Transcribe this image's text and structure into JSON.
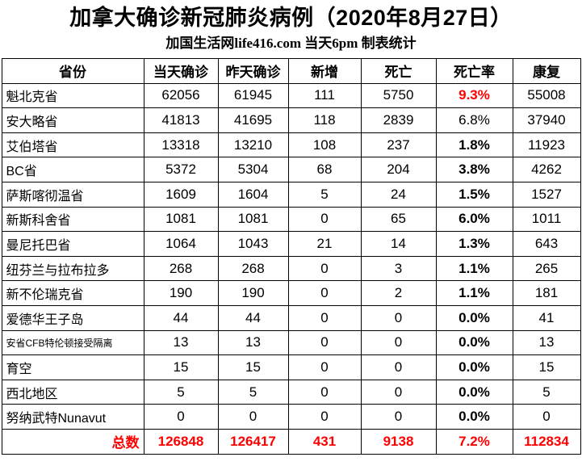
{
  "title": "加拿大确诊新冠肺炎病例（2020年8月27日）",
  "subtitle": "加国生活网life416.com 当天6pm 制表统计",
  "colors": {
    "highlight_red": "#FF0000",
    "text": "#000000",
    "border": "#000000",
    "background": "#FFFFFF"
  },
  "table": {
    "columns": [
      "省份",
      "当天确诊",
      "昨天确诊",
      "新增",
      "死亡",
      "死亡率",
      "康复"
    ],
    "rows": [
      {
        "province": "魁北克省",
        "today": "62056",
        "yesterday": "61945",
        "new_cases": "111",
        "deaths": "5750",
        "death_rate": "9.3%",
        "recovered": "55008",
        "death_rate_bold": true,
        "death_rate_red": true,
        "small_font": false
      },
      {
        "province": "安大略省",
        "today": "41813",
        "yesterday": "41695",
        "new_cases": "118",
        "deaths": "2839",
        "death_rate": "6.8%",
        "recovered": "37940",
        "death_rate_bold": false,
        "death_rate_red": false,
        "small_font": false
      },
      {
        "province": "艾伯塔省",
        "today": "13318",
        "yesterday": "13210",
        "new_cases": "108",
        "deaths": "237",
        "death_rate": "1.8%",
        "recovered": "11923",
        "death_rate_bold": true,
        "death_rate_red": false,
        "small_font": false
      },
      {
        "province": "BC省",
        "today": "5372",
        "yesterday": "5304",
        "new_cases": "68",
        "deaths": "204",
        "death_rate": "3.8%",
        "recovered": "4262",
        "death_rate_bold": true,
        "death_rate_red": false,
        "small_font": false
      },
      {
        "province": "萨斯喀彻温省",
        "today": "1609",
        "yesterday": "1604",
        "new_cases": "5",
        "deaths": "24",
        "death_rate": "1.5%",
        "recovered": "1527",
        "death_rate_bold": true,
        "death_rate_red": false,
        "small_font": false
      },
      {
        "province": "新斯科舍省",
        "today": "1081",
        "yesterday": "1081",
        "new_cases": "0",
        "deaths": "65",
        "death_rate": "6.0%",
        "recovered": "1011",
        "death_rate_bold": true,
        "death_rate_red": false,
        "small_font": false
      },
      {
        "province": "曼尼托巴省",
        "today": "1064",
        "yesterday": "1043",
        "new_cases": "21",
        "deaths": "14",
        "death_rate": "1.3%",
        "recovered": "643",
        "death_rate_bold": true,
        "death_rate_red": false,
        "small_font": false
      },
      {
        "province": "纽芬兰与拉布拉多",
        "today": "268",
        "yesterday": "268",
        "new_cases": "0",
        "deaths": "3",
        "death_rate": "1.1%",
        "recovered": "265",
        "death_rate_bold": true,
        "death_rate_red": false,
        "small_font": false
      },
      {
        "province": "新不伦瑞克省",
        "today": "190",
        "yesterday": "190",
        "new_cases": "0",
        "deaths": "2",
        "death_rate": "1.1%",
        "recovered": "181",
        "death_rate_bold": true,
        "death_rate_red": false,
        "small_font": false
      },
      {
        "province": "爱德华王子岛",
        "today": "44",
        "yesterday": "44",
        "new_cases": "0",
        "deaths": "0",
        "death_rate": "0.0%",
        "recovered": "41",
        "death_rate_bold": true,
        "death_rate_red": false,
        "small_font": false
      },
      {
        "province": "安省CFB特伦顿接受隔离",
        "today": "13",
        "yesterday": "13",
        "new_cases": "0",
        "deaths": "0",
        "death_rate": "0.0%",
        "recovered": "13",
        "death_rate_bold": true,
        "death_rate_red": false,
        "small_font": true
      },
      {
        "province": "育空",
        "today": "15",
        "yesterday": "15",
        "new_cases": "0",
        "deaths": "0",
        "death_rate": "0.0%",
        "recovered": "15",
        "death_rate_bold": true,
        "death_rate_red": false,
        "small_font": false
      },
      {
        "province": "西北地区",
        "today": "5",
        "yesterday": "5",
        "new_cases": "0",
        "deaths": "0",
        "death_rate": "0.0%",
        "recovered": "5",
        "death_rate_bold": true,
        "death_rate_red": false,
        "small_font": false
      },
      {
        "province": "努纳武特Nunavut",
        "today": "0",
        "yesterday": "0",
        "new_cases": "0",
        "deaths": "0",
        "death_rate": "0.0%",
        "recovered": "0",
        "death_rate_bold": true,
        "death_rate_red": false,
        "small_font": false
      }
    ],
    "total": {
      "label": "总数",
      "today": "126848",
      "yesterday": "126417",
      "new_cases": "431",
      "deaths": "9138",
      "death_rate": "7.2%",
      "recovered": "112834"
    }
  }
}
